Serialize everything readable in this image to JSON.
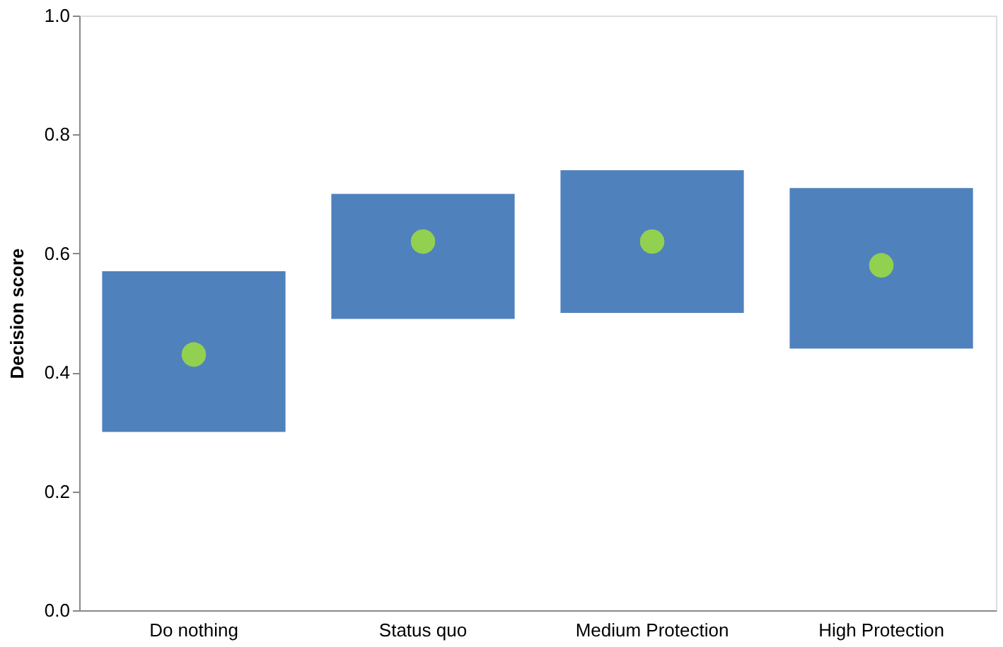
{
  "chart_data": {
    "type": "bar",
    "ylabel": "Decision score",
    "categories": [
      "Do nothing",
      "Status quo",
      "Medium Protection",
      "High Protection"
    ],
    "series": [
      {
        "type": "bar",
        "color": "#4f81bd",
        "base": [
          0.3,
          0.49,
          0.5,
          0.44
        ],
        "values": [
          0.27,
          0.21,
          0.24,
          0.27
        ]
      },
      {
        "type": "scatter",
        "color": "#92d050",
        "x": [
          "Do nothing",
          "Status quo",
          "Medium Protection",
          "High Protection"
        ],
        "values": [
          0.43,
          0.62,
          0.62,
          0.58
        ],
        "marker": "circle"
      }
    ],
    "ylim": [
      0,
      1.0
    ],
    "yticks": [
      {
        "value": 0,
        "label": "0.0"
      },
      {
        "value": 0.2,
        "label": "0.2"
      },
      {
        "value": 0.4,
        "label": "0.4"
      },
      {
        "value": 0.6,
        "label": "0.6"
      },
      {
        "value": 0.8,
        "label": "0.8"
      },
      {
        "value": 1.0,
        "label": "1.0"
      }
    ],
    "grid": false,
    "legend": false
  }
}
